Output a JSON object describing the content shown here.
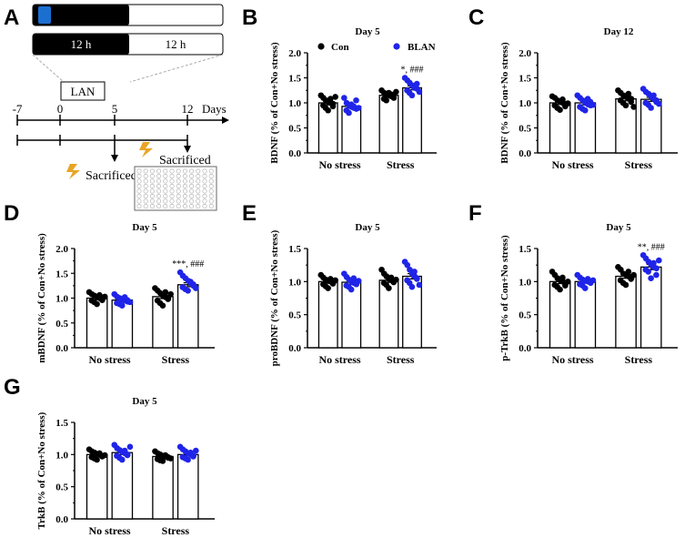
{
  "panel_a": {
    "label": "A",
    "light_left": "12 h",
    "light_right": "12 h",
    "lan_label": "LAN",
    "timeline": [
      "-7",
      "0",
      "5",
      "12"
    ],
    "days_label": "Days",
    "sacrificed_label": "Sacrificed"
  },
  "colors": {
    "con": "#000000",
    "blan": "#1f24e8",
    "lan_bar": "#1a6fd1",
    "bolt": "#e8a424"
  },
  "chart_data": [
    {
      "id": "B",
      "type": "bar",
      "title": "Day 5",
      "ylabel": "BDNF (% of Con+No stress)",
      "categories": [
        "No stress",
        "Stress"
      ],
      "ylim": [
        0,
        2.0
      ],
      "yticks": [
        "0.0",
        "0.5",
        "1.0",
        "1.5",
        "2.0"
      ],
      "legend": [
        "Con",
        "BLAN"
      ],
      "series": [
        {
          "name": "Con",
          "values": [
            1.0,
            1.15
          ],
          "sem": [
            0.04,
            0.03
          ],
          "points": [
            [
              1.15,
              1.1,
              1.05,
              1.02,
              1.0,
              0.98,
              0.95,
              0.9,
              0.85,
              1.08,
              0.93,
              1.12
            ],
            [
              1.25,
              1.2,
              1.18,
              1.15,
              1.13,
              1.1,
              1.08,
              1.05,
              1.2,
              1.17,
              1.12,
              1.22
            ]
          ]
        },
        {
          "name": "BLAN",
          "values": [
            0.93,
            1.3
          ],
          "sem": [
            0.03,
            0.04
          ],
          "points": [
            [
              1.1,
              1.0,
              0.95,
              0.92,
              0.9,
              0.88,
              0.85,
              0.8,
              0.97,
              0.93,
              1.05,
              0.9
            ],
            [
              1.5,
              1.45,
              1.4,
              1.35,
              1.3,
              1.28,
              1.25,
              1.2,
              1.15,
              1.33,
              1.38,
              1.22
            ]
          ]
        }
      ],
      "annotations": [
        {
          "cat": 1,
          "text": "*, ###"
        }
      ]
    },
    {
      "id": "C",
      "type": "bar",
      "title": "Day 12",
      "ylabel": "BDNF (% of Con+No stress)",
      "categories": [
        "No stress",
        "Stress"
      ],
      "ylim": [
        0,
        2.0
      ],
      "yticks": [
        "0.0",
        "0.5",
        "1.0",
        "1.5",
        "2.0"
      ],
      "series": [
        {
          "name": "Con",
          "values": [
            1.0,
            1.08
          ],
          "sem": [
            0.03,
            0.04
          ],
          "points": [
            [
              1.13,
              1.1,
              1.05,
              1.02,
              1.0,
              0.98,
              0.95,
              0.9,
              0.86,
              1.07,
              0.93,
              0.99
            ],
            [
              1.25,
              1.2,
              1.15,
              1.12,
              1.1,
              1.08,
              1.05,
              1.0,
              0.95,
              1.18,
              1.02,
              0.92
            ]
          ]
        },
        {
          "name": "BLAN",
          "values": [
            1.0,
            1.07
          ],
          "sem": [
            0.04,
            0.04
          ],
          "points": [
            [
              1.15,
              1.1,
              1.05,
              1.0,
              0.97,
              0.95,
              0.92,
              0.88,
              0.85,
              1.08,
              1.02,
              0.96
            ],
            [
              1.28,
              1.22,
              1.18,
              1.12,
              1.08,
              1.05,
              1.0,
              0.96,
              0.9,
              1.15,
              1.02,
              0.98
            ]
          ]
        }
      ],
      "annotations": []
    },
    {
      "id": "D",
      "type": "bar",
      "title": "Day 5",
      "ylabel": "mBDNF (% of Con+No stress)",
      "categories": [
        "No stress",
        "Stress"
      ],
      "ylim": [
        0,
        2.0
      ],
      "yticks": [
        "0.0",
        "0.5",
        "1.0",
        "1.5",
        "2.0"
      ],
      "series": [
        {
          "name": "Con",
          "values": [
            1.0,
            1.03
          ],
          "sem": [
            0.03,
            0.04
          ],
          "points": [
            [
              1.12,
              1.08,
              1.05,
              1.02,
              1.0,
              0.98,
              0.95,
              0.92,
              0.88,
              1.06,
              0.96,
              1.03
            ],
            [
              1.2,
              1.15,
              1.1,
              1.05,
              1.02,
              1.0,
              0.95,
              0.9,
              0.85,
              1.12,
              0.98,
              1.08
            ]
          ]
        },
        {
          "name": "BLAN",
          "values": [
            0.96,
            1.27
          ],
          "sem": [
            0.03,
            0.04
          ],
          "points": [
            [
              1.08,
              1.03,
              1.0,
              0.97,
              0.95,
              0.93,
              0.9,
              0.88,
              0.85,
              1.02,
              0.96,
              0.92
            ],
            [
              1.52,
              1.45,
              1.4,
              1.35,
              1.3,
              1.25,
              1.22,
              1.18,
              1.15,
              1.33,
              1.28,
              1.2
            ]
          ]
        }
      ],
      "annotations": [
        {
          "cat": 1,
          "text": "***, ###"
        }
      ]
    },
    {
      "id": "E",
      "type": "bar",
      "title": "Day 5",
      "ylabel": "proBDNF (% of Con+No stress)",
      "categories": [
        "No stress",
        "Stress"
      ],
      "ylim": [
        0,
        1.5
      ],
      "yticks": [
        "0.0",
        "0.5",
        "1.0",
        "1.5"
      ],
      "series": [
        {
          "name": "Con",
          "values": [
            1.0,
            1.02
          ],
          "sem": [
            0.02,
            0.03
          ],
          "points": [
            [
              1.1,
              1.06,
              1.03,
              1.01,
              1.0,
              0.98,
              0.96,
              0.93,
              0.9,
              1.04,
              0.97,
              1.02
            ],
            [
              1.18,
              1.12,
              1.08,
              1.04,
              1.02,
              1.0,
              0.98,
              0.95,
              0.9,
              1.06,
              0.99,
              1.03
            ]
          ]
        },
        {
          "name": "BLAN",
          "values": [
            0.99,
            1.08
          ],
          "sem": [
            0.03,
            0.04
          ],
          "points": [
            [
              1.12,
              1.07,
              1.03,
              1.0,
              0.98,
              0.96,
              0.94,
              0.92,
              0.88,
              1.05,
              0.97,
              1.01
            ],
            [
              1.3,
              1.25,
              1.18,
              1.12,
              1.08,
              1.05,
              1.02,
              0.98,
              0.92,
              1.15,
              1.04,
              0.95
            ]
          ]
        }
      ],
      "annotations": []
    },
    {
      "id": "F",
      "type": "bar",
      "title": "Day 5",
      "ylabel": "p-TrkB (% of Con+No stress)",
      "categories": [
        "No stress",
        "Stress"
      ],
      "ylim": [
        0,
        1.5
      ],
      "yticks": [
        "0.0",
        "0.5",
        "1.0",
        "1.5"
      ],
      "series": [
        {
          "name": "Con",
          "values": [
            1.0,
            1.08
          ],
          "sem": [
            0.03,
            0.03
          ],
          "points": [
            [
              1.15,
              1.1,
              1.05,
              1.02,
              1.0,
              0.97,
              0.95,
              0.92,
              0.88,
              1.06,
              0.94,
              1.0
            ],
            [
              1.22,
              1.18,
              1.12,
              1.1,
              1.08,
              1.05,
              1.02,
              0.98,
              0.95,
              1.15,
              1.04,
              1.1
            ]
          ]
        },
        {
          "name": "BLAN",
          "values": [
            1.0,
            1.22
          ],
          "sem": [
            0.02,
            0.04
          ],
          "points": [
            [
              1.1,
              1.06,
              1.03,
              1.01,
              1.0,
              0.98,
              0.96,
              0.94,
              0.9,
              1.04,
              0.99,
              1.02
            ],
            [
              1.4,
              1.35,
              1.3,
              1.25,
              1.22,
              1.2,
              1.18,
              1.15,
              1.05,
              1.28,
              1.1,
              1.32
            ]
          ]
        }
      ],
      "annotations": [
        {
          "cat": 1,
          "text": "**, ###"
        }
      ]
    },
    {
      "id": "G",
      "type": "bar",
      "title": "Day 5",
      "ylabel": "TrkB (% of Con+No stress)",
      "categories": [
        "No stress",
        "Stress"
      ],
      "ylim": [
        0,
        1.5
      ],
      "yticks": [
        "0.0",
        "0.5",
        "1.0",
        "1.5"
      ],
      "series": [
        {
          "name": "Con",
          "values": [
            1.0,
            0.97
          ],
          "sem": [
            0.02,
            0.02
          ],
          "points": [
            [
              1.08,
              1.05,
              1.03,
              1.01,
              1.0,
              0.98,
              0.96,
              0.94,
              0.92,
              1.02,
              0.97,
              0.99
            ],
            [
              1.05,
              1.02,
              1.0,
              0.98,
              0.97,
              0.95,
              0.93,
              0.91,
              0.9,
              0.99,
              0.96,
              0.94
            ]
          ]
        },
        {
          "name": "BLAN",
          "values": [
            1.03,
            1.0
          ],
          "sem": [
            0.03,
            0.02
          ],
          "points": [
            [
              1.15,
              1.1,
              1.07,
              1.04,
              1.02,
              1.0,
              0.98,
              0.95,
              0.92,
              1.06,
              0.99,
              1.12
            ],
            [
              1.12,
              1.08,
              1.05,
              1.02,
              1.0,
              0.98,
              0.96,
              0.94,
              0.92,
              1.03,
              0.97,
              1.06
            ]
          ]
        }
      ],
      "annotations": []
    }
  ]
}
